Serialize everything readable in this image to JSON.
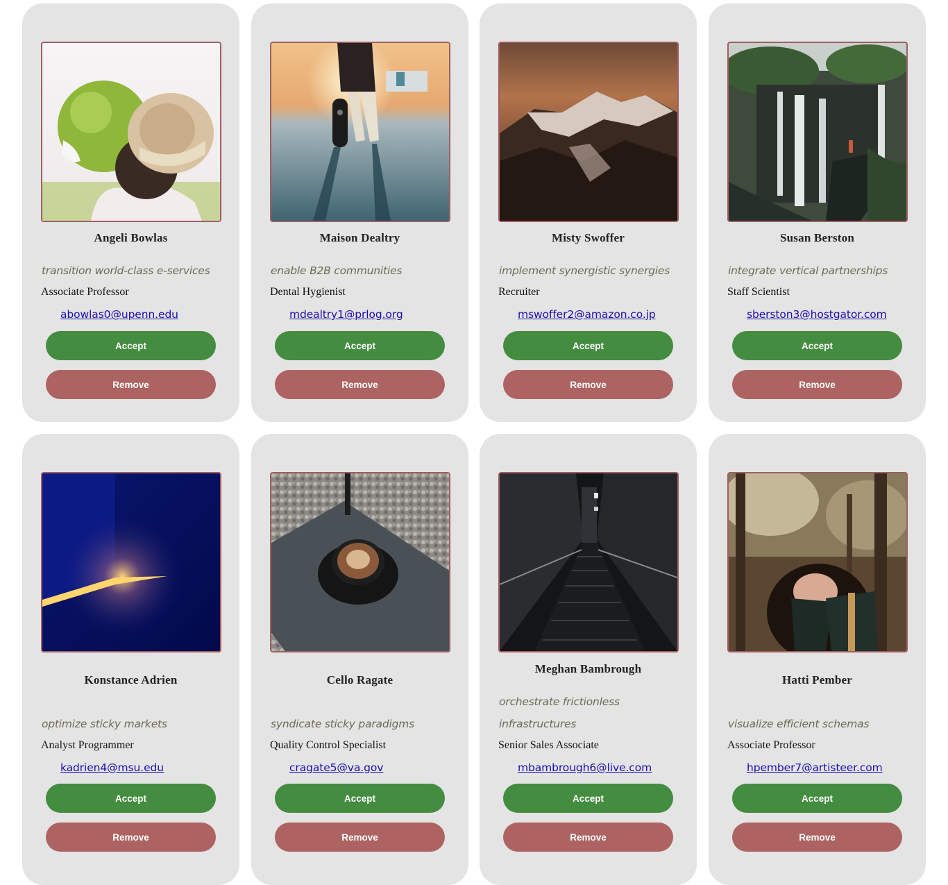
{
  "colors": {
    "card_bg": "#e4e4e4",
    "accept": "#438c40",
    "remove": "#ad6362",
    "photo_border": "#9e5f63",
    "email_link": "#1a0dab"
  },
  "cards": [
    {
      "name": "Angeli Bowlas",
      "tagline": "transition world-class e-services",
      "job": "Associate Professor",
      "email": "abowlas0@upenn.edu",
      "accept_label": "Accept",
      "remove_label": "Remove",
      "photo": "girl-with-hat-photo"
    },
    {
      "name": "Maison Dealtry",
      "tagline": "enable B2B communities",
      "job": "Dental Hygienist",
      "email": "mdealtry1@prlog.org",
      "accept_label": "Accept",
      "remove_label": "Remove",
      "photo": "skateboard-sunset-photo"
    },
    {
      "name": "Misty Swoffer",
      "tagline": "implement synergistic synergies",
      "job": "Recruiter",
      "email": "mswoffer2@amazon.co.jp",
      "accept_label": "Accept",
      "remove_label": "Remove",
      "photo": "snowy-mountains-photo"
    },
    {
      "name": "Susan Berston",
      "tagline": "integrate vertical partnerships",
      "job": "Staff Scientist",
      "email": "sberston3@hostgator.com",
      "accept_label": "Accept",
      "remove_label": "Remove",
      "photo": "waterfall-photo"
    },
    {
      "name": "Konstance Adrien",
      "tagline": "optimize sticky markets",
      "job": "Analyst Programmer",
      "email": "kadrien4@msu.edu",
      "accept_label": "Accept",
      "remove_label": "Remove",
      "photo": "blue-light-photo"
    },
    {
      "name": "Cello Ragate",
      "tagline": "syndicate sticky paradigms",
      "job": "Quality Control Specialist",
      "email": "cragate5@va.gov",
      "accept_label": "Accept",
      "remove_label": "Remove",
      "photo": "coffee-cup-photo"
    },
    {
      "name": "Meghan Bambrough",
      "tagline": "orchestrate frictionless infrastructures",
      "job": "Senior Sales Associate",
      "email": "mbambrough6@live.com",
      "accept_label": "Accept",
      "remove_label": "Remove",
      "photo": "dark-staircase-photo"
    },
    {
      "name": "Hatti Pember",
      "tagline": "visualize efficient schemas",
      "job": "Associate Professor",
      "email": "hpember7@artisteer.com",
      "accept_label": "Accept",
      "remove_label": "Remove",
      "photo": "woman-reading-photo"
    }
  ]
}
